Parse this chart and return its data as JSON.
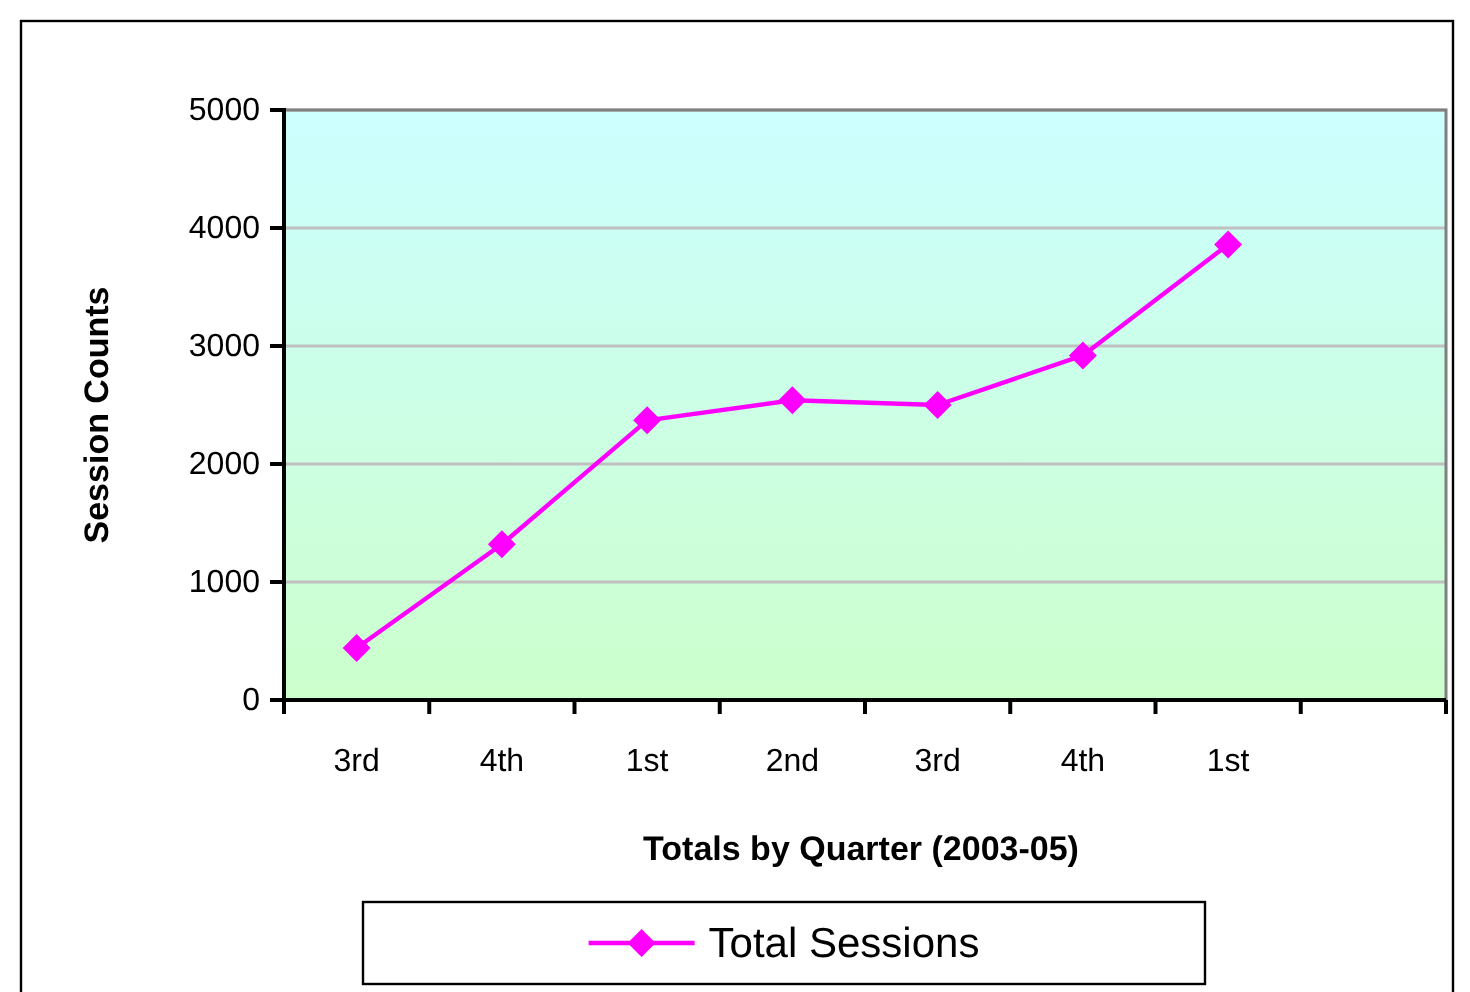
{
  "chart_data": {
    "type": "line",
    "xlabel": "Totals by Quarter (2003-05)",
    "ylabel": "Session Counts",
    "categories": [
      "3rd",
      "4th",
      "1st",
      "2nd",
      "3rd",
      "4th",
      "1st",
      null
    ],
    "series": [
      {
        "name": "Total Sessions",
        "color": "#ff00ff",
        "values": [
          440,
          1320,
          2370,
          2540,
          2500,
          2920,
          3860,
          null
        ]
      }
    ],
    "ylim": [
      0,
      5000
    ],
    "yticks": [
      0,
      1000,
      2000,
      3000,
      4000,
      5000
    ],
    "grid": "y",
    "legend": "bottom",
    "marker": "diamond",
    "line_style": "solid"
  }
}
